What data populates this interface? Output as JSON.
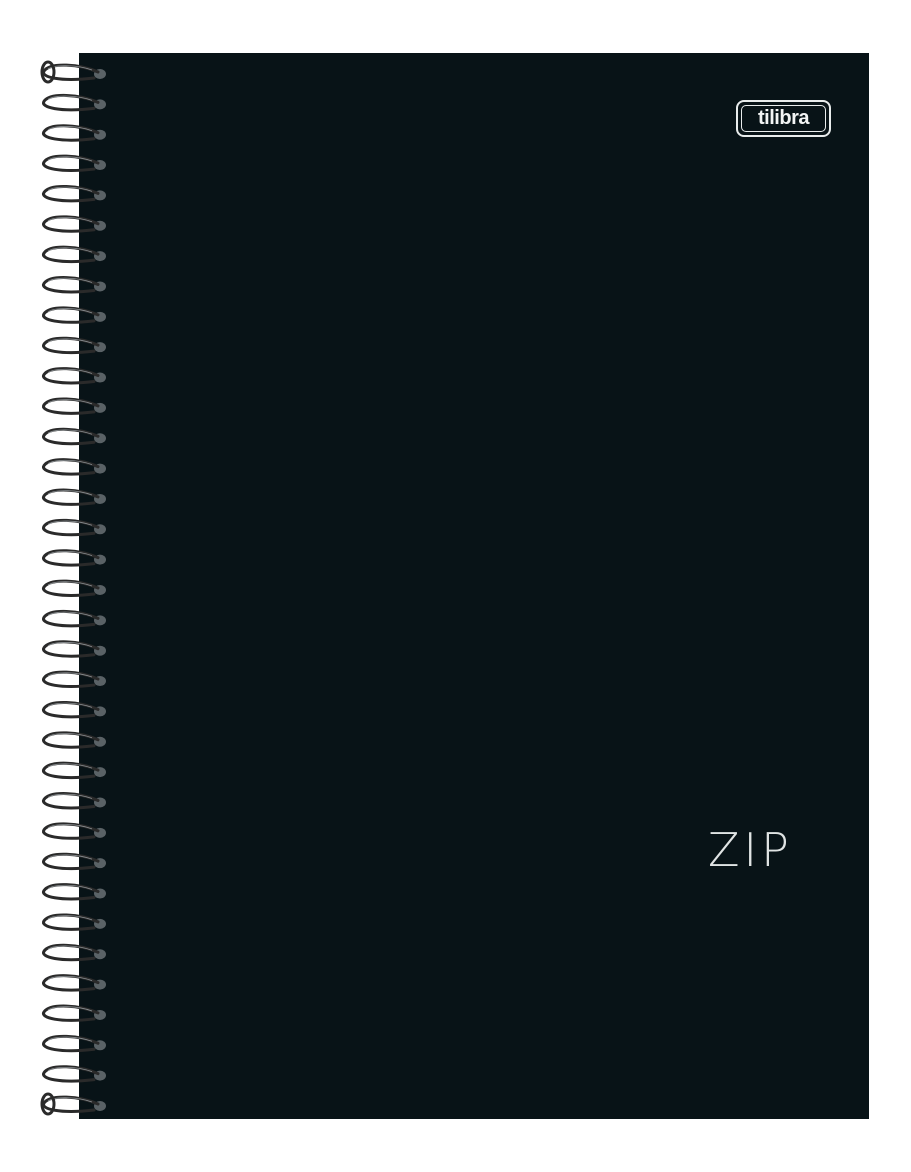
{
  "product": {
    "brand": "tilibra",
    "title": "ZIP"
  },
  "colors": {
    "cover": "#081317",
    "wire": "#2a2a2a",
    "hole": "#5a6266",
    "text": "#e0e4e4"
  },
  "icons": {
    "binding": "spiral-wire-binding-icon",
    "logo": "tilibra-brand-logo"
  }
}
